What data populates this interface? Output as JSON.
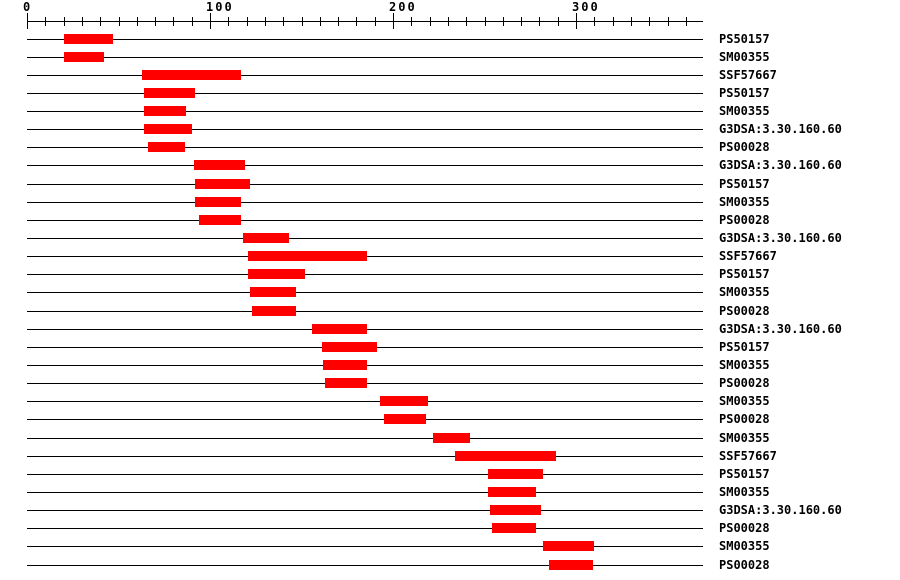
{
  "page": {
    "background": "#ffffff"
  },
  "chart_data": {
    "type": "bar",
    "orientation": "horizontal",
    "description": "Protein sequence signature match plot: one track per signature hit, red bar marks matched region along residue axis",
    "axis": {
      "min": 0,
      "max": 370,
      "minor_tick_step": 10,
      "major_tick_step": 100,
      "last_tick": 360,
      "major_tick_labels": [
        "0",
        "100",
        "200",
        "300"
      ]
    },
    "colors": {
      "bar": "#ff0000",
      "line": "#000000",
      "text": "#000000",
      "background": "#ffffff"
    },
    "legend_position": "right",
    "grid": false,
    "rows": [
      {
        "label": "PS50157",
        "start": 20,
        "end": 47
      },
      {
        "label": "SM00355",
        "start": 20,
        "end": 42
      },
      {
        "label": "SSF57667",
        "start": 63,
        "end": 117
      },
      {
        "label": "PS50157",
        "start": 64,
        "end": 92
      },
      {
        "label": "SM00355",
        "start": 64,
        "end": 87
      },
      {
        "label": "G3DSA:3.30.160.60",
        "start": 64,
        "end": 90
      },
      {
        "label": "PS00028",
        "start": 66,
        "end": 86
      },
      {
        "label": "G3DSA:3.30.160.60",
        "start": 91,
        "end": 119
      },
      {
        "label": "PS50157",
        "start": 92,
        "end": 122
      },
      {
        "label": "SM00355",
        "start": 92,
        "end": 117
      },
      {
        "label": "PS00028",
        "start": 94,
        "end": 117
      },
      {
        "label": "G3DSA:3.30.160.60",
        "start": 118,
        "end": 143
      },
      {
        "label": "SSF57667",
        "start": 121,
        "end": 186
      },
      {
        "label": "PS50157",
        "start": 121,
        "end": 152
      },
      {
        "label": "SM00355",
        "start": 122,
        "end": 147
      },
      {
        "label": "PS00028",
        "start": 123,
        "end": 147
      },
      {
        "label": "G3DSA:3.30.160.60",
        "start": 156,
        "end": 186
      },
      {
        "label": "PS50157",
        "start": 161,
        "end": 191
      },
      {
        "label": "SM00355",
        "start": 162,
        "end": 186
      },
      {
        "label": "PS00028",
        "start": 163,
        "end": 186
      },
      {
        "label": "SM00355",
        "start": 193,
        "end": 219
      },
      {
        "label": "PS00028",
        "start": 195,
        "end": 218
      },
      {
        "label": "SM00355",
        "start": 222,
        "end": 242
      },
      {
        "label": "SSF57667",
        "start": 234,
        "end": 289
      },
      {
        "label": "PS50157",
        "start": 252,
        "end": 282
      },
      {
        "label": "SM00355",
        "start": 252,
        "end": 278
      },
      {
        "label": "G3DSA:3.30.160.60",
        "start": 253,
        "end": 281
      },
      {
        "label": "PS00028",
        "start": 254,
        "end": 278
      },
      {
        "label": "SM00355",
        "start": 282,
        "end": 310
      },
      {
        "label": "PS00028",
        "start": 285,
        "end": 309
      }
    ]
  }
}
